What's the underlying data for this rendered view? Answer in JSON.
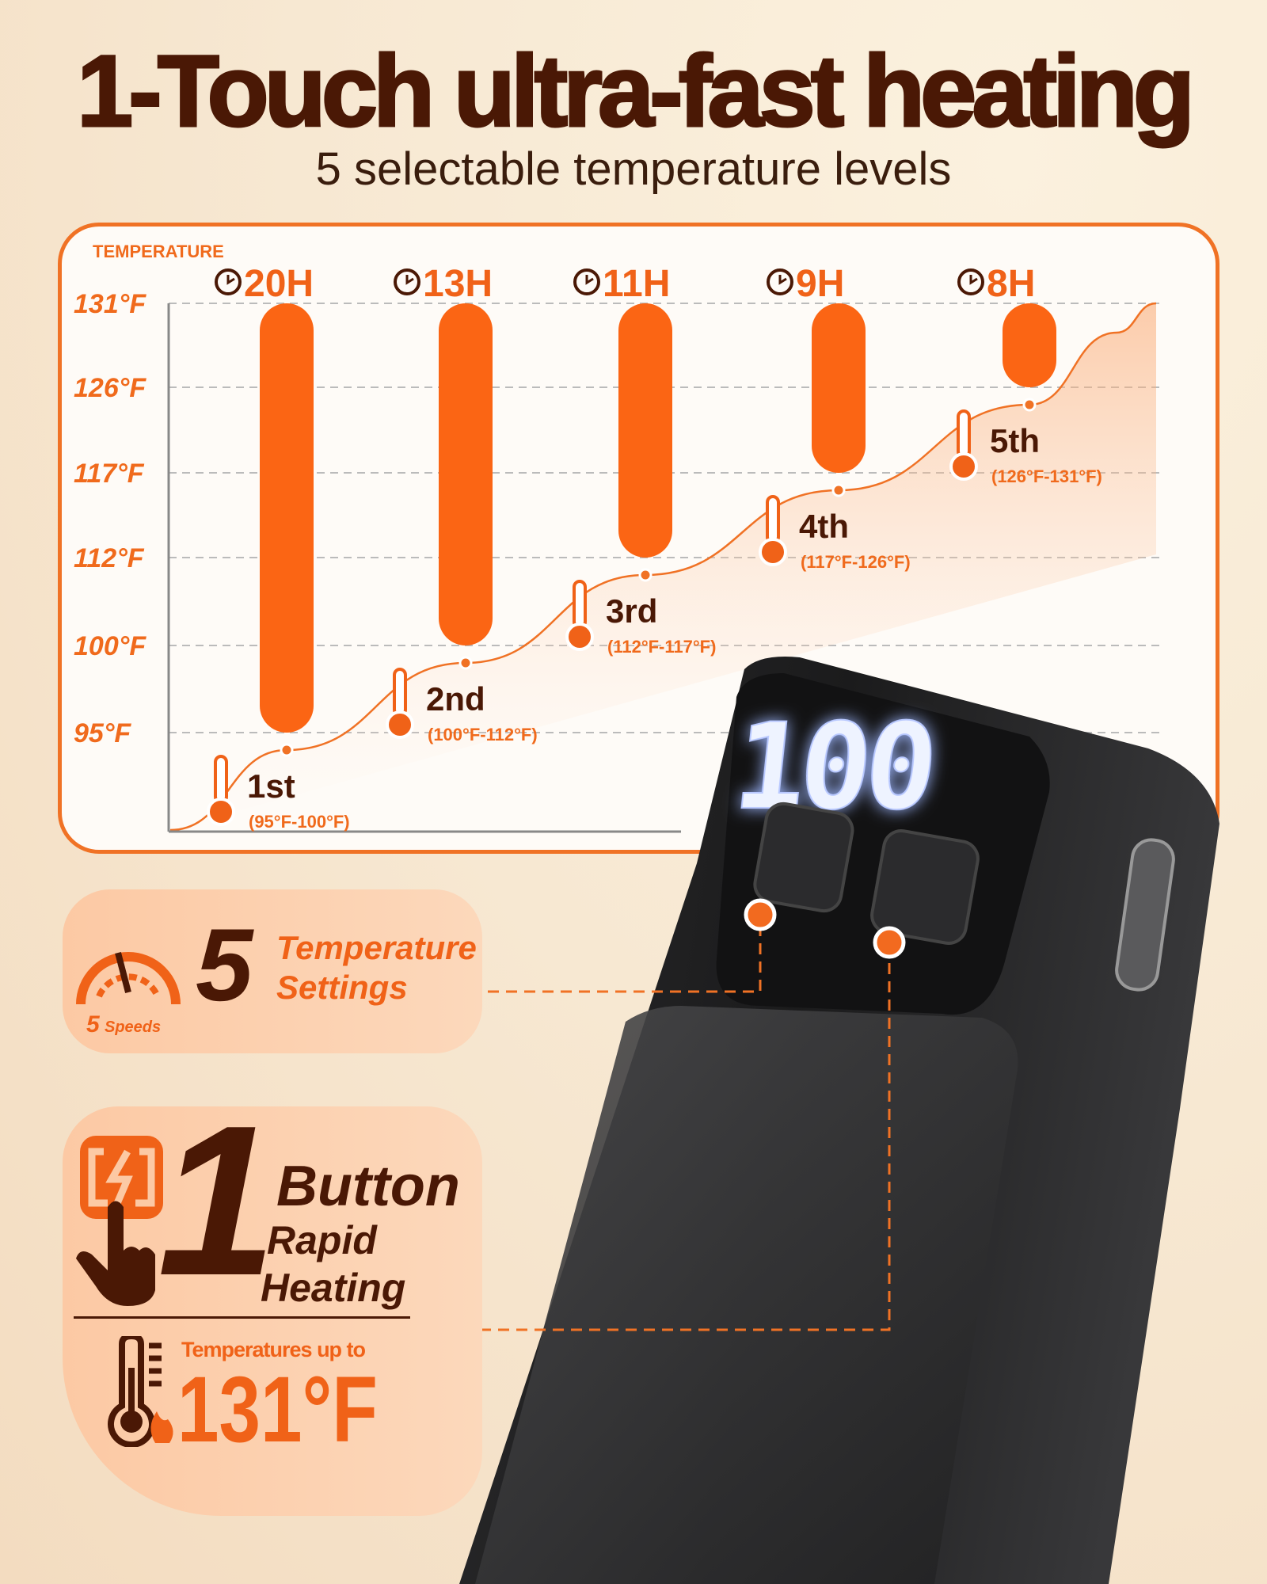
{
  "header": {
    "title": "1-Touch ultra-fast heating",
    "subtitle": "5 selectable temperature levels"
  },
  "colors": {
    "accent": "#f06218",
    "dark_brown": "#4a1805",
    "card_border": "#f07225",
    "device": "#1e1e1f"
  },
  "chart_data": {
    "type": "bar",
    "ylabel": "TEMPERATURE",
    "y_ticks": [
      "131°F",
      "126°F",
      "117°F",
      "112°F",
      "100°F",
      "95°F"
    ],
    "grid": true,
    "categories": [
      "1st",
      "2nd",
      "3rd",
      "4th",
      "5th"
    ],
    "ranges": [
      "(95°F-100°F)",
      "(100°F-112°F)",
      "(112°F-117°F)",
      "(117°F-126°F)",
      "(126°F-131°F)"
    ],
    "durations": [
      "20H",
      "13H",
      "11H",
      "9H",
      "8H"
    ],
    "bar_low": [
      95,
      100,
      112,
      117,
      126
    ],
    "bar_high": [
      131,
      131,
      131,
      131,
      131
    ]
  },
  "device": {
    "display": "100"
  },
  "features": {
    "settings": {
      "number": "5",
      "line1": "Temperature",
      "line2": "Settings",
      "gauge_number": "5",
      "gauge_label": "Speeds",
      "icon": "speedometer-icon"
    },
    "button": {
      "number": "1",
      "line1": "Button",
      "line2": "Rapid",
      "line3": "Heating",
      "icon": "touch-lightning-button-icon",
      "temp_caption": "Temperatures up to",
      "temp_value": "131°F",
      "temp_icon": "thermometer-flame-icon"
    }
  }
}
